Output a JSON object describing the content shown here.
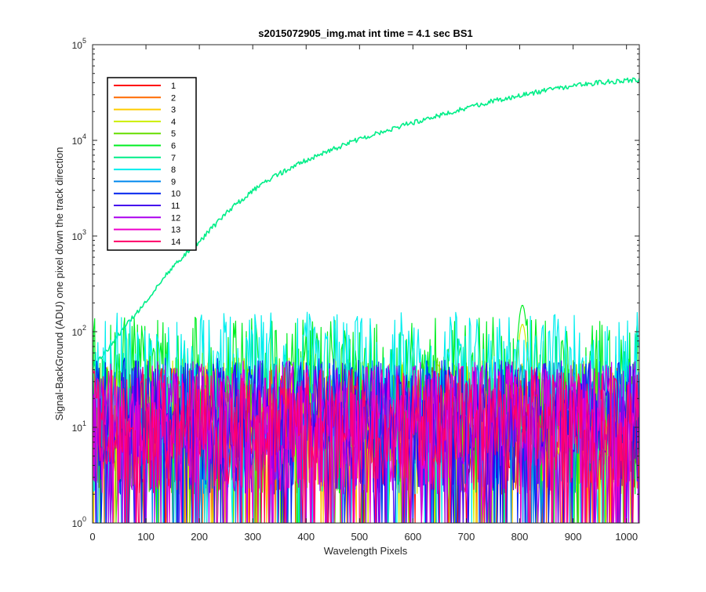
{
  "chart_data": {
    "type": "line",
    "title": "s2015072905_img.mat int time = 4.1 sec   BS1",
    "xlabel": "Wavelength Pixels",
    "ylabel": "Signal-BackGround (ADU) one pixel down the track direction",
    "xlim": [
      0,
      1024
    ],
    "ylim": [
      1,
      100000
    ],
    "yscale": "log",
    "grid": false,
    "legend_position": "top-left",
    "x_ticks": [
      0,
      100,
      200,
      300,
      400,
      500,
      600,
      700,
      800,
      900,
      1000
    ],
    "x_tick_labels": [
      "0",
      "100",
      "200",
      "300",
      "400",
      "500",
      "600",
      "700",
      "800",
      "900",
      "1000"
    ],
    "y_ticks": [
      1,
      10,
      100,
      1000,
      10000,
      100000
    ],
    "y_tick_labels": [
      {
        "base": "10",
        "exp": "0"
      },
      {
        "base": "10",
        "exp": "1"
      },
      {
        "base": "10",
        "exp": "2"
      },
      {
        "base": "10",
        "exp": "3"
      },
      {
        "base": "10",
        "exp": "4"
      },
      {
        "base": "10",
        "exp": "5"
      }
    ],
    "series": [
      {
        "name": "1",
        "color": "#ff0000",
        "kind": "noise",
        "typical": 12
      },
      {
        "name": "2",
        "color": "#ff6a00",
        "kind": "noise",
        "typical": 12
      },
      {
        "name": "3",
        "color": "#ffcc00",
        "kind": "noise",
        "typical": 14
      },
      {
        "name": "4",
        "color": "#ccee00",
        "kind": "noise",
        "typical": 15,
        "peak": {
          "x": 805,
          "y": 120
        }
      },
      {
        "name": "5",
        "color": "#66dd00",
        "kind": "noise",
        "typical": 16
      },
      {
        "name": "6",
        "color": "#00ee22",
        "kind": "noise",
        "typical": 40,
        "peak": {
          "x": 805,
          "y": 190
        }
      },
      {
        "name": "7",
        "color": "#00ee88",
        "kind": "signal",
        "x": [
          0,
          25,
          50,
          75,
          100,
          125,
          150,
          175,
          200,
          250,
          300,
          350,
          400,
          450,
          500,
          550,
          600,
          650,
          700,
          750,
          800,
          850,
          900,
          950,
          1000,
          1024
        ],
        "y": [
          45,
          62,
          95,
          140,
          210,
          320,
          480,
          650,
          870,
          1750,
          3000,
          4500,
          6200,
          8100,
          10300,
          12700,
          15400,
          18300,
          21800,
          25800,
          29500,
          33300,
          37200,
          40200,
          42500,
          43000
        ]
      },
      {
        "name": "8",
        "color": "#00eeee",
        "kind": "noise",
        "typical": 45
      },
      {
        "name": "9",
        "color": "#0088ee",
        "kind": "noise",
        "typical": 14
      },
      {
        "name": "10",
        "color": "#0022ee",
        "kind": "noise",
        "typical": 15
      },
      {
        "name": "11",
        "color": "#4400ee",
        "kind": "noise",
        "typical": 14
      },
      {
        "name": "12",
        "color": "#aa00ee",
        "kind": "noise",
        "typical": 14
      },
      {
        "name": "13",
        "color": "#ee00cc",
        "kind": "noise",
        "typical": 13
      },
      {
        "name": "14",
        "color": "#ff0066",
        "kind": "noise",
        "typical": 12
      }
    ]
  }
}
